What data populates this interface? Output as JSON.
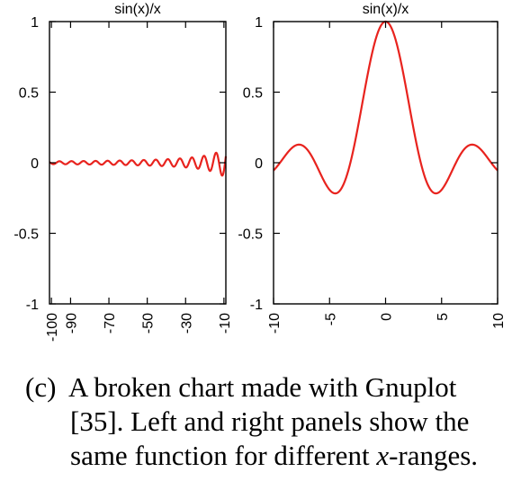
{
  "chart_data": [
    {
      "type": "line",
      "title": "sin(x)/x",
      "function": "sin(x)/x",
      "xlim": [
        -101,
        -9
      ],
      "ylim": [
        -1,
        1
      ],
      "x_ticks": [
        -100,
        -90,
        -70,
        -50,
        -30,
        -10
      ],
      "y_ticks": [
        -1,
        -0.5,
        0,
        0.5,
        1
      ],
      "x_tick_labels": [
        "-100",
        "-90",
        "-70",
        "-50",
        "-30",
        "-10"
      ],
      "y_tick_labels": [
        "-1",
        "-0.5",
        "0",
        "0.5",
        "1"
      ],
      "series": [
        {
          "color": "#e8231e"
        }
      ],
      "grid": false
    },
    {
      "type": "line",
      "title": "sin(x)/x",
      "function": "sin(x)/x",
      "xlim": [
        -10,
        10
      ],
      "ylim": [
        -1,
        1
      ],
      "x_ticks": [
        -10,
        -5,
        0,
        5,
        10
      ],
      "y_ticks": [
        -1,
        -0.5,
        0,
        0.5,
        1
      ],
      "x_tick_labels": [
        "-10",
        "-5",
        "0",
        "5",
        "10"
      ],
      "y_tick_labels": [
        "-1",
        "-0.5",
        "0",
        "0.5",
        "1"
      ],
      "series": [
        {
          "color": "#e8231e"
        }
      ],
      "grid": false
    }
  ],
  "caption": {
    "label": "(c)",
    "line1": "A broken chart made with Gnuplot",
    "line2": "[35]. Left and right panels show the",
    "line3_before": "same function for different ",
    "line3_var": "x",
    "line3_after": "-ranges."
  }
}
